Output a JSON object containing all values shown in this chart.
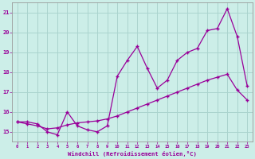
{
  "background_color": "#cceee8",
  "grid_color": "#aad4ce",
  "line_color": "#990099",
  "marker_color": "#990099",
  "xlabel": "Windchill (Refroidissement éolien,°C)",
  "xlim": [
    -0.5,
    23.5
  ],
  "ylim": [
    14.5,
    21.5
  ],
  "yticks": [
    15,
    16,
    17,
    18,
    19,
    20,
    21
  ],
  "xticks": [
    0,
    1,
    2,
    3,
    4,
    5,
    6,
    7,
    8,
    9,
    10,
    11,
    12,
    13,
    14,
    15,
    16,
    17,
    18,
    19,
    20,
    21,
    22,
    23
  ],
  "series1_x": [
    0,
    1,
    2,
    3,
    4,
    5,
    6,
    7,
    8,
    9,
    10,
    11,
    12,
    13,
    14,
    15,
    16,
    17,
    18,
    19,
    20,
    21,
    22,
    23
  ],
  "series1_y": [
    15.5,
    15.5,
    15.4,
    15.0,
    14.85,
    16.0,
    15.3,
    15.1,
    15.0,
    15.3,
    17.8,
    18.6,
    19.3,
    18.2,
    17.2,
    17.6,
    18.6,
    19.0,
    19.2,
    20.1,
    20.2,
    21.2,
    19.8,
    17.3
  ],
  "series2_x": [
    0,
    1,
    2,
    3,
    4,
    5,
    6,
    7,
    8,
    9,
    10,
    11,
    12,
    13,
    14,
    15,
    16,
    17,
    18,
    19,
    20,
    21,
    22,
    23
  ],
  "series2_y": [
    15.5,
    15.4,
    15.3,
    15.15,
    15.2,
    15.35,
    15.45,
    15.5,
    15.55,
    15.65,
    15.8,
    16.0,
    16.2,
    16.4,
    16.6,
    16.8,
    17.0,
    17.2,
    17.4,
    17.6,
    17.75,
    17.9,
    17.1,
    16.6
  ]
}
